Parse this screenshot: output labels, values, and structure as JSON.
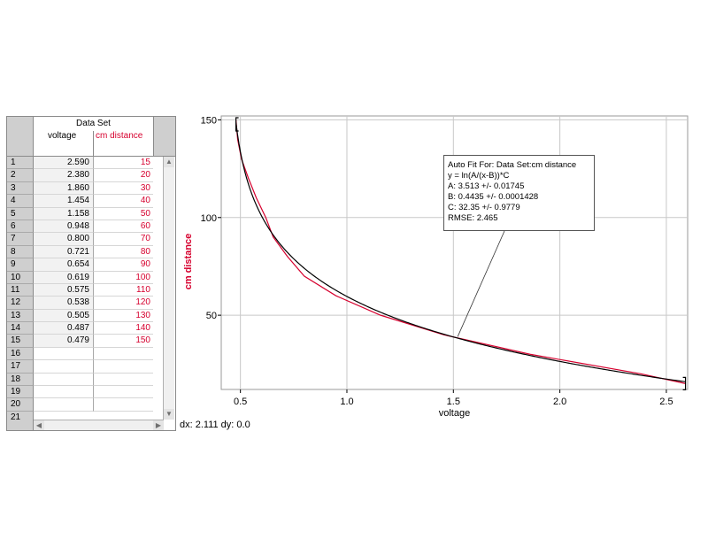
{
  "table": {
    "set_title": "Data Set",
    "columns": [
      "voltage",
      "cm distance"
    ],
    "rows": [
      {
        "n": "1",
        "voltage": "2.590",
        "distance": "15"
      },
      {
        "n": "2",
        "voltage": "2.380",
        "distance": "20"
      },
      {
        "n": "3",
        "voltage": "1.860",
        "distance": "30"
      },
      {
        "n": "4",
        "voltage": "1.454",
        "distance": "40"
      },
      {
        "n": "5",
        "voltage": "1.158",
        "distance": "50"
      },
      {
        "n": "6",
        "voltage": "0.948",
        "distance": "60"
      },
      {
        "n": "7",
        "voltage": "0.800",
        "distance": "70"
      },
      {
        "n": "8",
        "voltage": "0.721",
        "distance": "80"
      },
      {
        "n": "9",
        "voltage": "0.654",
        "distance": "90"
      },
      {
        "n": "10",
        "voltage": "0.619",
        "distance": "100"
      },
      {
        "n": "11",
        "voltage": "0.575",
        "distance": "110"
      },
      {
        "n": "12",
        "voltage": "0.538",
        "distance": "120"
      },
      {
        "n": "13",
        "voltage": "0.505",
        "distance": "130"
      },
      {
        "n": "14",
        "voltage": "0.487",
        "distance": "140"
      },
      {
        "n": "15",
        "voltage": "0.479",
        "distance": "150"
      }
    ],
    "empty_rows": [
      "16",
      "17",
      "18",
      "19",
      "20"
    ],
    "last_row_number": "21"
  },
  "status": "dx: 2.111 dy: 0.0",
  "fit_box": {
    "lines": [
      "Auto Fit For:  Data Set:cm distance",
      "y = ln(A/(x-B))*C",
      "A: 3.513 +/- 0.01745",
      "B: 0.4435 +/- 0.0001428",
      "C: 32.35 +/- 0.9779",
      "RMSE: 2.465"
    ]
  },
  "colors": {
    "data_series": "#d6002e",
    "fit_curve": "#000000",
    "grid": "#c8c8c8"
  },
  "chart_data": {
    "type": "line",
    "xlabel": "voltage",
    "ylabel": "cm distance",
    "xlim": [
      0.41,
      2.6
    ],
    "ylim": [
      12,
      152
    ],
    "x_ticks": [
      0.5,
      1.0,
      1.5,
      2.0,
      2.5
    ],
    "x_tick_labels": [
      "0.5",
      "1.0",
      "1.5",
      "2.0",
      "2.5"
    ],
    "y_ticks": [
      50,
      100,
      150
    ],
    "y_tick_labels": [
      "50",
      "100",
      "150"
    ],
    "grid": true,
    "series": [
      {
        "x": [
          2.59,
          2.38,
          1.86,
          1.454,
          1.158,
          0.948,
          0.8,
          0.721,
          0.654,
          0.619,
          0.575,
          0.538,
          0.505,
          0.487,
          0.479
        ],
        "y": [
          15,
          20,
          30,
          40,
          50,
          60,
          70,
          80,
          90,
          100,
          110,
          120,
          130,
          140,
          150
        ]
      }
    ],
    "fit": {
      "equation": "y = ln(A/(x-B))*C",
      "A": 3.513,
      "B": 0.4435,
      "C": 32.35,
      "x_range": [
        0.479,
        2.59
      ]
    },
    "annotation_point": {
      "x": 1.52,
      "y": 39
    }
  }
}
